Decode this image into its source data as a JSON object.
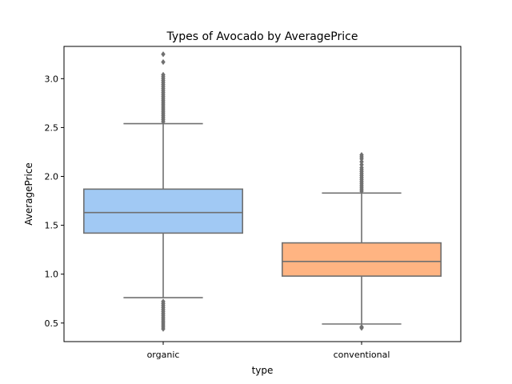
{
  "chart_data": {
    "type": "box",
    "title": "Types of Avocado by AveragePrice",
    "xlabel": "type",
    "ylabel": "AveragePrice",
    "ylim": [
      0.31,
      3.33
    ],
    "yticks": [
      "0.5",
      "1.0",
      "1.5",
      "2.0",
      "2.5",
      "3.0"
    ],
    "categories": [
      "organic",
      "conventional"
    ],
    "boxes": [
      {
        "category": "organic",
        "color": "#a1c9f4",
        "whisker_low": 0.76,
        "q1": 1.42,
        "median": 1.63,
        "q3": 1.87,
        "whisker_high": 2.54,
        "outliers_high": [
          2.56,
          2.58,
          2.6,
          2.62,
          2.64,
          2.66,
          2.68,
          2.7,
          2.72,
          2.74,
          2.76,
          2.78,
          2.8,
          2.82,
          2.84,
          2.86,
          2.88,
          2.9,
          2.92,
          2.94,
          2.96,
          2.98,
          3.0,
          3.02,
          3.04,
          3.17,
          3.25
        ],
        "outliers_low": [
          0.44,
          0.46,
          0.48,
          0.5,
          0.52,
          0.54,
          0.56,
          0.58,
          0.6,
          0.62,
          0.64,
          0.66,
          0.68,
          0.7,
          0.72
        ]
      },
      {
        "category": "conventional",
        "color": "#ffb482",
        "whisker_low": 0.49,
        "q1": 0.98,
        "median": 1.13,
        "q3": 1.32,
        "whisker_high": 1.83,
        "outliers_high": [
          1.85,
          1.87,
          1.89,
          1.91,
          1.93,
          1.95,
          1.97,
          1.99,
          2.01,
          2.03,
          2.05,
          2.07,
          2.09,
          2.12,
          2.15,
          2.18,
          2.2,
          2.22
        ],
        "outliers_low": [
          0.45,
          0.46
        ]
      }
    ],
    "grid": false,
    "legend": "none",
    "line_color": "#707070"
  }
}
